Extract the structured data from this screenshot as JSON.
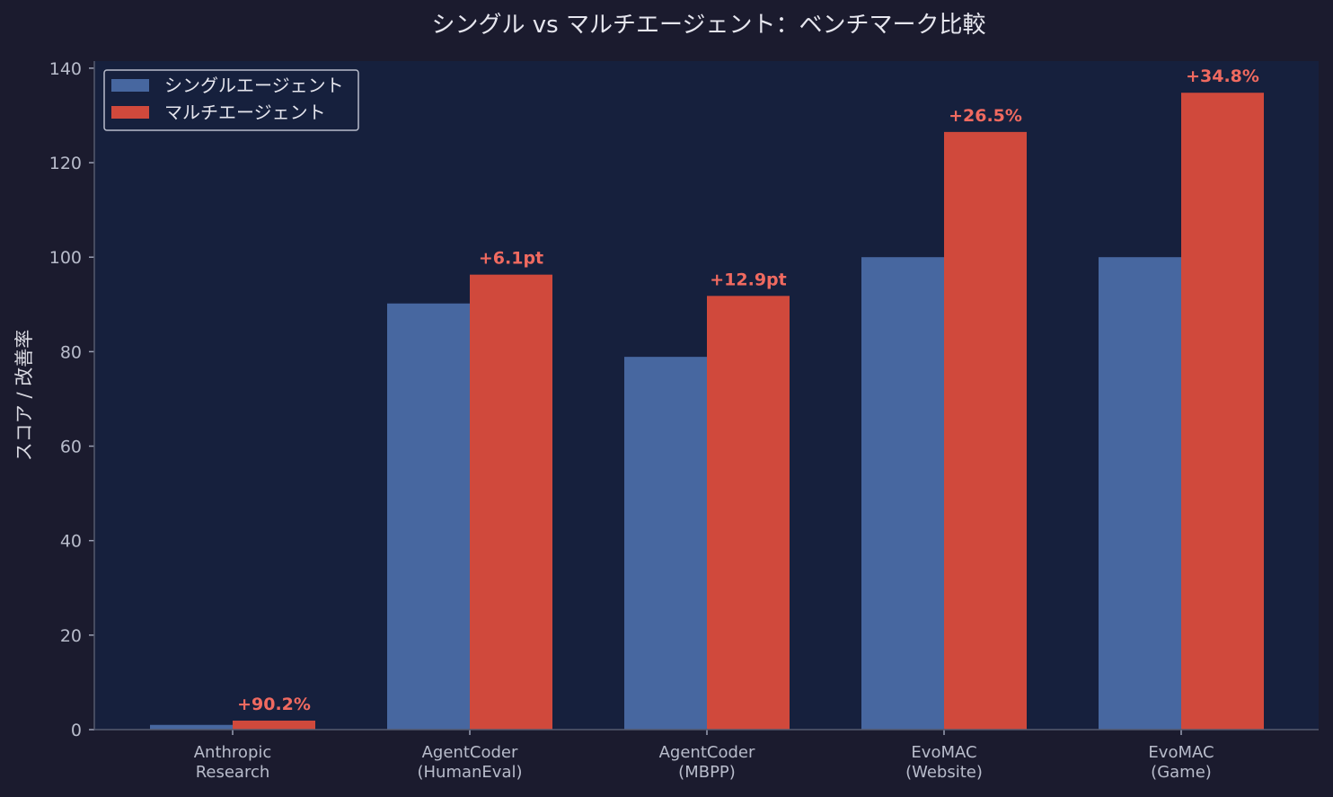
{
  "chart_data": {
    "type": "bar",
    "title": "シングル vs マルチエージェント：ベンチマーク比較",
    "xlabel": "",
    "ylabel": "スコア / 改善率",
    "ylim": [
      0,
      141.5
    ],
    "yticks": [
      0,
      20,
      40,
      60,
      80,
      100,
      120,
      140
    ],
    "grid": false,
    "legend_placement": "top-left",
    "categories": [
      [
        "Anthropic",
        "Research"
      ],
      [
        "AgentCoder",
        "(HumanEval)"
      ],
      [
        "AgentCoder",
        "(MBPP)"
      ],
      [
        "EvoMAC",
        "(Website)"
      ],
      [
        "EvoMAC",
        "(Game)"
      ]
    ],
    "series": [
      {
        "name": "シングルエージェント",
        "color": "#4767a0",
        "values": [
          1.0,
          90.2,
          78.9,
          100,
          100
        ]
      },
      {
        "name": "マルチエージェント",
        "color": "#d0493c",
        "values": [
          1.9,
          96.3,
          91.8,
          126.5,
          134.8
        ]
      }
    ],
    "annotations": [
      "+90.2%",
      "+6.1pt",
      "+12.9pt",
      "+26.5%",
      "+34.8%"
    ],
    "annotation_color": "#f06a60",
    "colors": {
      "background": "#1b1b2e",
      "plot_background": "#16203d"
    }
  }
}
